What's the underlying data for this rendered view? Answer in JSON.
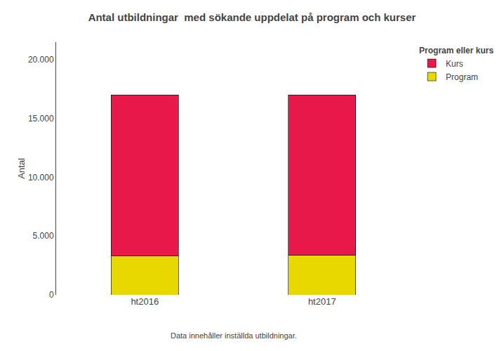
{
  "chart_data": {
    "type": "bar",
    "title": "Antal utbildningar  med sökande uppdelat på program och kurser",
    "ylabel": "Antal",
    "categories": [
      "ht2016",
      "ht2017"
    ],
    "series": [
      {
        "name": "Program",
        "color": "#E8D800",
        "values": [
          3300,
          3400
        ]
      },
      {
        "name": "Kurs",
        "color": "#E8194A",
        "values": [
          13700,
          13600
        ]
      }
    ],
    "stacked": true,
    "ylim": [
      0,
      21500
    ],
    "yticks": [
      0,
      {
        "value": 5000,
        "label": "5.000"
      },
      {
        "value": 10000,
        "label": "10.000"
      },
      {
        "value": 15000,
        "label": "15.000"
      },
      {
        "value": 20000,
        "label": "20.000"
      }
    ],
    "grid": false,
    "legend": "right",
    "legend_title": "Program eller kurs",
    "footnote": "Data innehåller inställda utbildningar."
  }
}
